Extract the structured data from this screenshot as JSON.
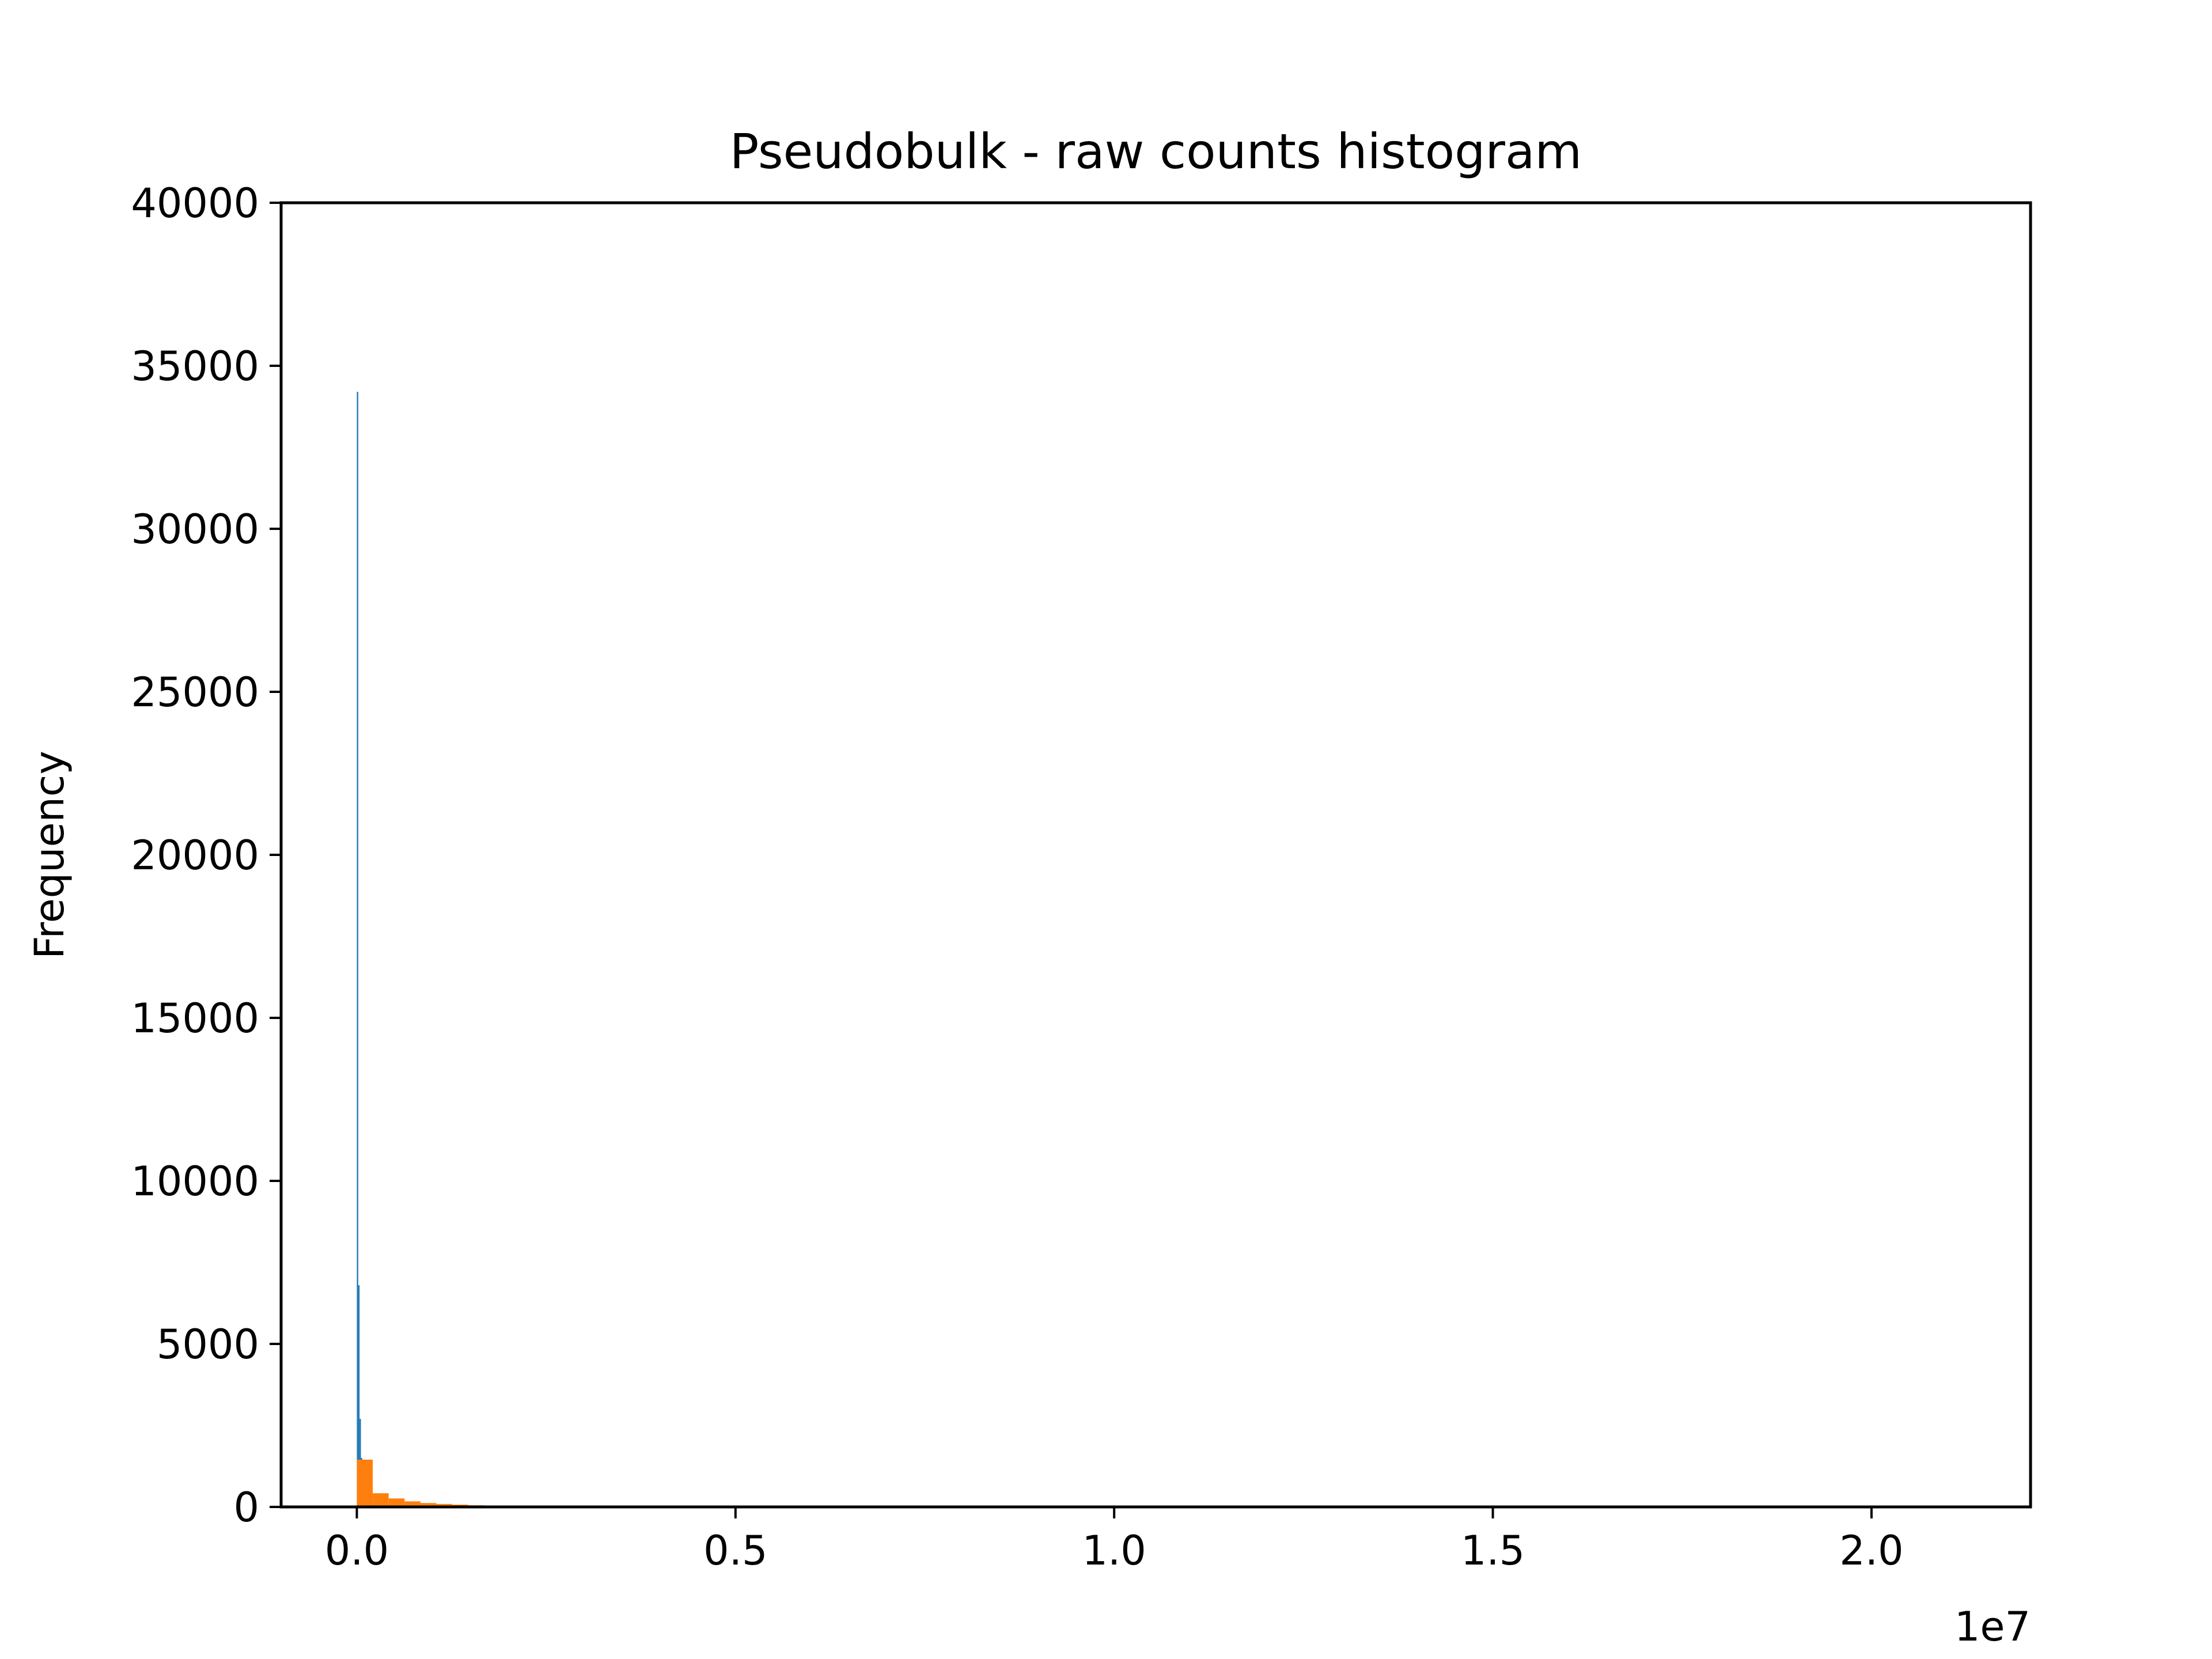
{
  "chart_data": {
    "type": "bar",
    "title": "Pseudobulk - raw counts histogram",
    "xlabel": "",
    "ylabel": "Frequency",
    "x_offset_label": "1e7",
    "xlim": [
      -1000000,
      22100000
    ],
    "ylim": [
      0,
      40000
    ],
    "x_ticks": [
      0,
      5000000,
      10000000,
      15000000,
      20000000
    ],
    "x_tick_labels": [
      "0.0",
      "0.5",
      "1.0",
      "1.5",
      "2.0"
    ],
    "y_ticks": [
      0,
      5000,
      10000,
      15000,
      20000,
      25000,
      30000,
      35000,
      40000
    ],
    "y_tick_labels": [
      "0",
      "5000",
      "10000",
      "15000",
      "20000",
      "25000",
      "30000",
      "35000",
      "40000"
    ],
    "grid": false,
    "series": [
      {
        "color": "#1f77b4",
        "bins": [
          {
            "x0": 0,
            "x1": 18000,
            "count": 34200
          },
          {
            "x0": 18000,
            "x1": 36000,
            "count": 6800
          },
          {
            "x0": 36000,
            "x1": 54000,
            "count": 2700
          },
          {
            "x0": 54000,
            "x1": 72000,
            "count": 1500
          }
        ]
      },
      {
        "color": "#ff7f0e",
        "bins": [
          {
            "x0": 0,
            "x1": 210000,
            "count": 1450
          },
          {
            "x0": 210000,
            "x1": 420000,
            "count": 420
          },
          {
            "x0": 420000,
            "x1": 630000,
            "count": 260
          },
          {
            "x0": 630000,
            "x1": 840000,
            "count": 170
          },
          {
            "x0": 840000,
            "x1": 1050000,
            "count": 120
          },
          {
            "x0": 1050000,
            "x1": 1260000,
            "count": 90
          },
          {
            "x0": 1260000,
            "x1": 1470000,
            "count": 70
          },
          {
            "x0": 1470000,
            "x1": 1680000,
            "count": 50
          },
          {
            "x0": 1680000,
            "x1": 1890000,
            "count": 35
          },
          {
            "x0": 1890000,
            "x1": 2100000,
            "count": 25
          }
        ]
      }
    ]
  }
}
